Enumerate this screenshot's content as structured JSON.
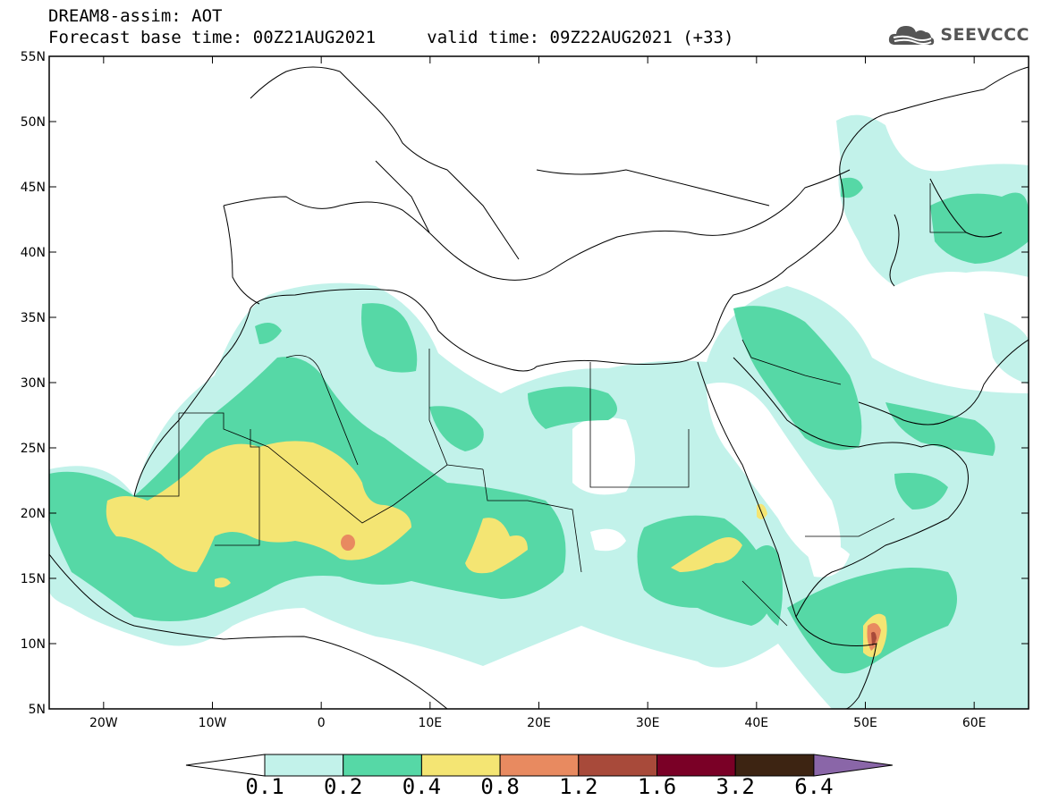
{
  "header": {
    "title": "DREAM8-assim: AOT",
    "base_time": "Forecast base time: 00Z21AUG2021",
    "valid_time": "valid time: 09Z22AUG2021 (+33)"
  },
  "logo": {
    "text": "SEEVCCC",
    "icon": "cloud-icon"
  },
  "map": {
    "lon_range": [
      -25,
      65
    ],
    "lat_range": [
      5,
      55
    ],
    "lon_ticks": [
      {
        "value": -20,
        "label": "20W"
      },
      {
        "value": -10,
        "label": "10W"
      },
      {
        "value": 0,
        "label": "0"
      },
      {
        "value": 10,
        "label": "10E"
      },
      {
        "value": 20,
        "label": "20E"
      },
      {
        "value": 30,
        "label": "30E"
      },
      {
        "value": 40,
        "label": "40E"
      },
      {
        "value": 50,
        "label": "50E"
      },
      {
        "value": 60,
        "label": "60E"
      }
    ],
    "lat_ticks": [
      {
        "value": 55,
        "label": "55N"
      },
      {
        "value": 50,
        "label": "50N"
      },
      {
        "value": 45,
        "label": "45N"
      },
      {
        "value": 40,
        "label": "40N"
      },
      {
        "value": 35,
        "label": "35N"
      },
      {
        "value": 30,
        "label": "30N"
      },
      {
        "value": 25,
        "label": "25N"
      },
      {
        "value": 20,
        "label": "20N"
      },
      {
        "value": 15,
        "label": "15N"
      },
      {
        "value": 10,
        "label": "10N"
      },
      {
        "value": 5,
        "label": "5N"
      }
    ]
  },
  "colorbar": {
    "levels": [
      "0.1",
      "0.2",
      "0.4",
      "0.8",
      "1.2",
      "1.6",
      "3.2",
      "6.4"
    ],
    "colors": [
      "#ffffff",
      "#c2f2ea",
      "#56d8a6",
      "#f4e573",
      "#e88a60",
      "#a84a3a",
      "#7a0026",
      "#3d2412",
      "#8a66a8"
    ]
  }
}
